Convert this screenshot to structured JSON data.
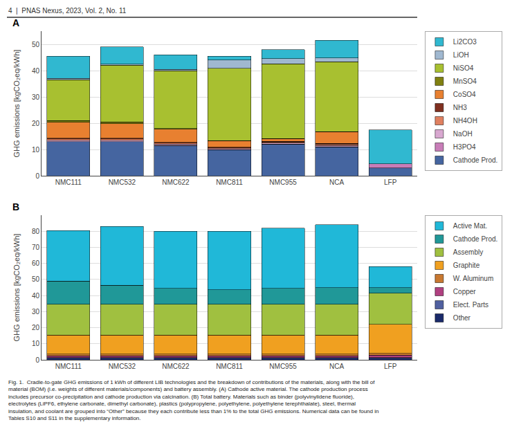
{
  "chart_data": [
    {
      "type": "bar",
      "stacked": true,
      "title": "A",
      "annotations": [
        "4  |  PNAS Nexus, 2023, Vol. 2, No. 11"
      ],
      "categories": [
        "NMC111",
        "NMC532",
        "NMC622",
        "NMC811",
        "NMC955",
        "NCA",
        "LFP"
      ],
      "ylabel": "GHG emissions [kgCO₂eq/kWh]",
      "ylim": [
        0,
        55
      ],
      "yticks": [
        0,
        10,
        20,
        30,
        40,
        50
      ],
      "grid": true,
      "legend": "right",
      "series": [
        {
          "name": "Cathode Prod.",
          "color": "#4565a0",
          "values": [
            13.0,
            13.0,
            11.5,
            10.0,
            12.0,
            11.0,
            3.0
          ]
        },
        {
          "name": "H3PO4",
          "color": "#c87db8",
          "values": [
            0.0,
            0.0,
            0.0,
            0.0,
            0.0,
            0.0,
            1.5
          ]
        },
        {
          "name": "NaOH",
          "color": "#d8a8d0",
          "values": [
            0.5,
            0.5,
            0.5,
            0.3,
            0.5,
            0.5,
            0.0
          ]
        },
        {
          "name": "NH4OH",
          "color": "#e08060",
          "values": [
            0.5,
            0.5,
            0.4,
            0.3,
            0.3,
            0.5,
            0.0
          ]
        },
        {
          "name": "NH3",
          "color": "#803020",
          "values": [
            0.3,
            0.3,
            0.3,
            0.2,
            0.3,
            0.3,
            0.0
          ]
        },
        {
          "name": "CoSO4",
          "color": "#e88030",
          "values": [
            6.0,
            5.5,
            5.0,
            2.5,
            1.0,
            4.5,
            0.0
          ]
        },
        {
          "name": "MnSO4",
          "color": "#808010",
          "values": [
            0.7,
            0.7,
            0.3,
            0.0,
            0.0,
            0.0,
            0.0
          ]
        },
        {
          "name": "NiSO4",
          "color": "#a8c030",
          "values": [
            15.5,
            21.5,
            22.0,
            27.5,
            28.5,
            26.5,
            0.0
          ]
        },
        {
          "name": "LiOH",
          "color": "#a0b8d0",
          "values": [
            0.5,
            0.5,
            0.5,
            3.2,
            2.0,
            1.5,
            0.0
          ]
        },
        {
          "name": "Li2CO3",
          "color": "#30b8d0",
          "values": [
            8.5,
            6.5,
            5.5,
            1.5,
            3.4,
            6.7,
            13.0
          ]
        }
      ]
    },
    {
      "type": "bar",
      "stacked": true,
      "title": "B",
      "annotations": [
        "Fig. 1.  Cradle-to-gate GHG emissions of 1 kWh of different LIB technologies and the breakdown of contributions of the materials, along with the bill of\nmaterial (BOM) (i.e. weights of different materials/components) and battery assembly. (A) Cathode active material. The cathode production process\nincludes precursor co-precipitation and cathode production via calcination. (B) Total battery. Materials such as binder (polyvinylidene fluoride),\nelectrolytes (LiPF6, ethylene carbonate, dimethyl carbonate), plastics (polypropylene, polyethylene, polyethylene terephthalate), steel, thermal\ninsulation, and coolant are grouped into “Other” because they each contribute less than 1% to the total GHG emissions. Numerical data can be found in\nTables S10 and S11 in the supplementary information."
      ],
      "categories": [
        "NMC111",
        "NMC532",
        "NMC622",
        "NMC811",
        "NMC955",
        "NCA",
        "LFP"
      ],
      "ylabel": "GHG emissions [kgCO₂eq/kWh]",
      "ylim": [
        0,
        90
      ],
      "yticks": [
        0,
        10,
        20,
        30,
        40,
        50,
        60,
        70,
        80
      ],
      "grid": true,
      "legend": "right",
      "series": [
        {
          "name": "Other",
          "color": "#1a2a6a",
          "values": [
            1.0,
            1.0,
            1.0,
            1.0,
            1.0,
            1.0,
            1.0
          ]
        },
        {
          "name": "Elect. Parts",
          "color": "#5060a0",
          "values": [
            0.5,
            0.5,
            0.5,
            0.5,
            0.5,
            0.5,
            0.5
          ]
        },
        {
          "name": "Copper",
          "color": "#b04080",
          "values": [
            1.0,
            1.0,
            1.0,
            1.0,
            1.0,
            1.0,
            1.5
          ]
        },
        {
          "name": "W. Aluminum",
          "color": "#c87830",
          "values": [
            1.0,
            1.0,
            1.0,
            1.0,
            1.0,
            1.0,
            1.0
          ]
        },
        {
          "name": "Graphite",
          "color": "#f0a020",
          "values": [
            12.0,
            12.0,
            12.0,
            12.0,
            12.0,
            12.0,
            18.0
          ]
        },
        {
          "name": "Assembly",
          "color": "#a0c040",
          "values": [
            19.0,
            19.0,
            19.0,
            19.0,
            19.0,
            19.0,
            19.5
          ]
        },
        {
          "name": "Cathode Prod.",
          "color": "#209898",
          "values": [
            14.5,
            12.0,
            10.0,
            9.0,
            10.0,
            10.5,
            3.5
          ]
        },
        {
          "name": "Active Mat.",
          "color": "#20b8d8",
          "values": [
            31.5,
            36.5,
            35.5,
            36.5,
            37.5,
            39.0,
            13.0
          ]
        }
      ]
    }
  ]
}
